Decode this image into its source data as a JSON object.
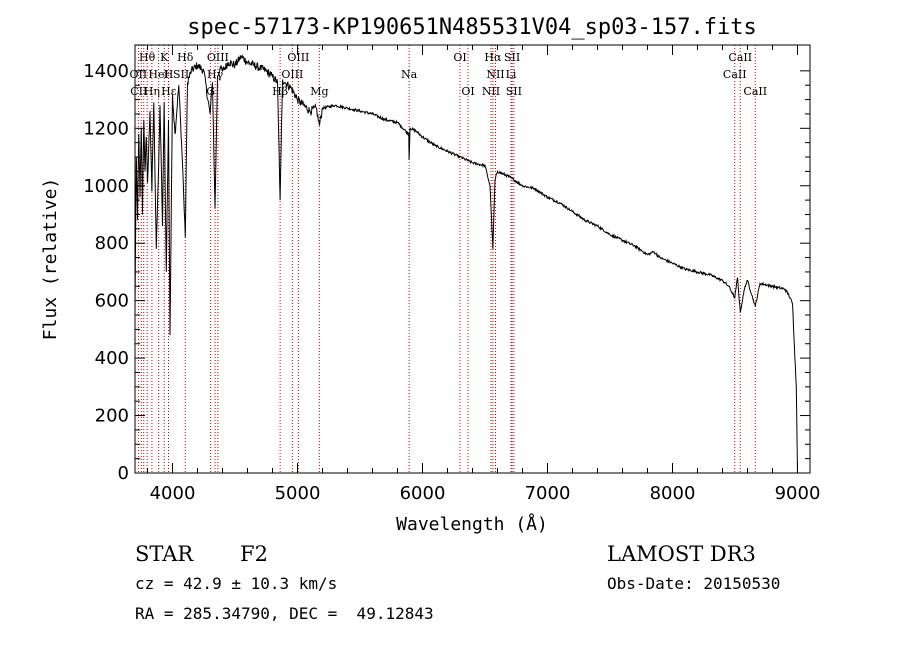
{
  "chart_data": {
    "type": "line",
    "title": "spec-57173-KP190651N485531V04_sp03-157.fits",
    "xlabel": "Wavelength (Å)",
    "ylabel": "Flux (relative)",
    "xlim": [
      3700,
      9100
    ],
    "ylim": [
      0,
      1490
    ],
    "xticks": [
      4000,
      5000,
      6000,
      7000,
      8000,
      9000
    ],
    "xtick_labels": [
      "4000",
      "5000",
      "6000",
      "7000",
      "8000",
      "9000"
    ],
    "yticks": [
      0,
      200,
      400,
      600,
      800,
      1000,
      1200,
      1400
    ],
    "ytick_labels": [
      "0",
      "200",
      "400",
      "600",
      "800",
      "1000",
      "1200",
      "1400"
    ],
    "series": [
      {
        "name": "spectrum",
        "x": [
          3700,
          3710,
          3720,
          3730,
          3740,
          3750,
          3760,
          3770,
          3780,
          3790,
          3800,
          3820,
          3835,
          3850,
          3870,
          3889,
          3900,
          3920,
          3933,
          3950,
          3968,
          3980,
          4000,
          4020,
          4050,
          4080,
          4102,
          4120,
          4150,
          4200,
          4250,
          4300,
          4320,
          4340,
          4360,
          4380,
          4400,
          4450,
          4500,
          4550,
          4600,
          4650,
          4700,
          4750,
          4800,
          4840,
          4861,
          4880,
          4900,
          4950,
          5000,
          5050,
          5100,
          5150,
          5175,
          5200,
          5300,
          5400,
          5500,
          5600,
          5700,
          5800,
          5890,
          5893,
          5900,
          5950,
          6000,
          6100,
          6200,
          6300,
          6400,
          6500,
          6540,
          6563,
          6580,
          6600,
          6650,
          6700,
          6800,
          6900,
          7000,
          7100,
          7200,
          7300,
          7400,
          7500,
          7600,
          7700,
          7800,
          7850,
          7900,
          8000,
          8100,
          8200,
          8300,
          8400,
          8450,
          8498,
          8520,
          8542,
          8580,
          8600,
          8662,
          8700,
          8800,
          8900,
          8930,
          8960,
          8990,
          9000
        ],
        "y": [
          560,
          1100,
          880,
          1180,
          960,
          1200,
          900,
          1230,
          1050,
          1170,
          1010,
          1260,
          980,
          1290,
          780,
          1060,
          1280,
          860,
          1290,
          700,
          1230,
          480,
          1320,
          1180,
          1350,
          1080,
          820,
          1360,
          1400,
          1420,
          1400,
          1250,
          1360,
          920,
          1380,
          1410,
          1400,
          1430,
          1420,
          1450,
          1430,
          1420,
          1410,
          1400,
          1380,
          1360,
          950,
          1370,
          1360,
          1340,
          1300,
          1280,
          1260,
          1270,
          1210,
          1270,
          1280,
          1270,
          1260,
          1250,
          1230,
          1220,
          1180,
          1090,
          1200,
          1190,
          1170,
          1140,
          1120,
          1100,
          1080,
          1070,
          1000,
          780,
          1020,
          1050,
          1040,
          1030,
          1000,
          990,
          960,
          940,
          910,
          880,
          860,
          830,
          810,
          790,
          760,
          770,
          750,
          730,
          710,
          700,
          690,
          670,
          650,
          610,
          680,
          560,
          650,
          670,
          580,
          660,
          650,
          640,
          620,
          590,
          300,
          0
        ]
      }
    ],
    "annotations": [
      {
        "label": "Hθ",
        "x": 3797,
        "row": 1
      },
      {
        "label": "OII",
        "x": 3727,
        "row": 2
      },
      {
        "label": "CII",
        "x": 3730,
        "row": 3
      },
      {
        "label": "Hη",
        "x": 3835,
        "row": 3
      },
      {
        "label": "HeI",
        "x": 3889,
        "row": 2
      },
      {
        "label": "K",
        "x": 3934,
        "row": 1
      },
      {
        "label": "Hε",
        "x": 3970,
        "row": 3
      },
      {
        "label": "H",
        "x": 3968,
        "row": 2
      },
      {
        "label": "Hδ",
        "x": 4102,
        "row": 1
      },
      {
        "label": "SII",
        "x": 4069,
        "row": 2
      },
      {
        "label": "OIII",
        "x": 4363,
        "row": 1
      },
      {
        "label": "Hγ",
        "x": 4341,
        "row": 2
      },
      {
        "label": "G",
        "x": 4305,
        "row": 3
      },
      {
        "label": "OIII",
        "x": 5007,
        "row": 1
      },
      {
        "label": "OIII",
        "x": 4959,
        "row": 2
      },
      {
        "label": "Hβ",
        "x": 4861,
        "row": 3
      },
      {
        "label": "Mg",
        "x": 5175,
        "row": 3
      },
      {
        "label": "Na",
        "x": 5893,
        "row": 2
      },
      {
        "label": "OI",
        "x": 6300,
        "row": 1
      },
      {
        "label": "OI",
        "x": 6364,
        "row": 3
      },
      {
        "label": "Hα",
        "x": 6563,
        "row": 1
      },
      {
        "label": "NII",
        "x": 6584,
        "row": 2
      },
      {
        "label": "NII",
        "x": 6548,
        "row": 3
      },
      {
        "label": "SII",
        "x": 6717,
        "row": 1
      },
      {
        "label": "Li",
        "x": 6708,
        "row": 2
      },
      {
        "label": "SII",
        "x": 6731,
        "row": 3
      },
      {
        "label": "CaII",
        "x": 8542,
        "row": 1
      },
      {
        "label": "CaII",
        "x": 8498,
        "row": 2
      },
      {
        "label": "CaII",
        "x": 8662,
        "row": 3
      }
    ],
    "line_markers": [
      3727,
      3750,
      3770,
      3797,
      3835,
      3889,
      3934,
      3968,
      4102,
      4305,
      4341,
      4363,
      4861,
      4959,
      5007,
      5175,
      5893,
      6300,
      6364,
      6548,
      6563,
      6584,
      6708,
      6717,
      6731,
      8498,
      8542,
      8662
    ],
    "colors": {
      "spectrum": "#000000",
      "markers": "#cc0000",
      "axes": "#000000"
    }
  },
  "info": {
    "object_class": "STAR",
    "subclass": "F2",
    "survey": "LAMOST DR3",
    "redshift": "cz = 42.9 ± 10.3 km/s",
    "obs_date": "Obs-Date: 20150530",
    "coords": "RA = 285.34790, DEC =  49.12843"
  }
}
